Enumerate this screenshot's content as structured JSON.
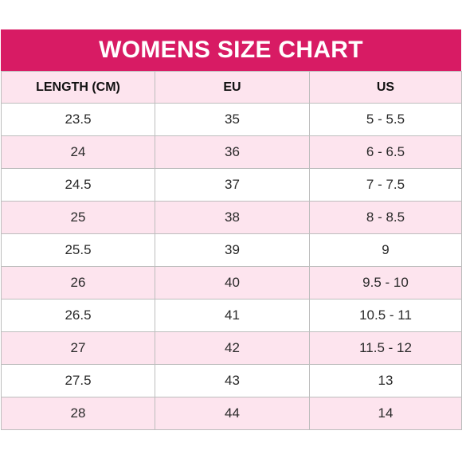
{
  "title": "WOMENS SIZE CHART",
  "columns": [
    "LENGTH (CM)",
    "EU",
    "US"
  ],
  "rows": [
    [
      "23.5",
      "35",
      "5 - 5.5"
    ],
    [
      "24",
      "36",
      "6 - 6.5"
    ],
    [
      "24.5",
      "37",
      "7 - 7.5"
    ],
    [
      "25",
      "38",
      "8 - 8.5"
    ],
    [
      "25.5",
      "39",
      "9"
    ],
    [
      "26",
      "40",
      "9.5 - 10"
    ],
    [
      "26.5",
      "41",
      "10.5 - 11"
    ],
    [
      "27",
      "42",
      "11.5 - 12"
    ],
    [
      "27.5",
      "43",
      "13"
    ],
    [
      "28",
      "44",
      "14"
    ]
  ],
  "colors": {
    "header_band": "#d81b64",
    "row_tint": "#fde4ee",
    "grid": "#bdbdbd"
  }
}
